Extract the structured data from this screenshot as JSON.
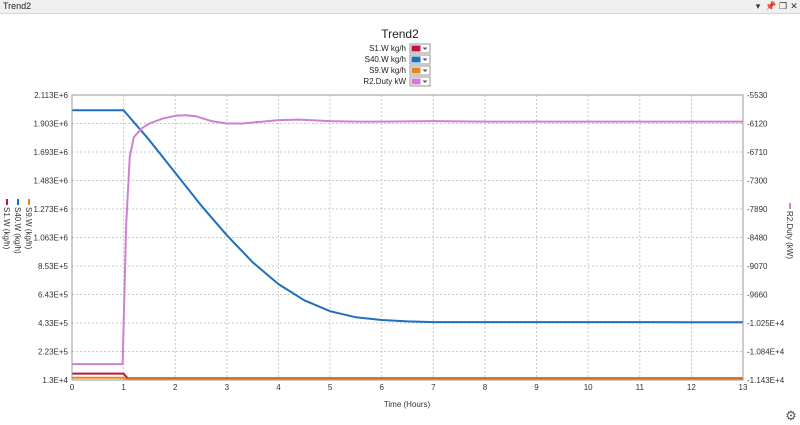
{
  "window": {
    "title": "Trend2",
    "controls": {
      "menu": "▾",
      "close": "✕",
      "restore": "❐",
      "pin": "📌"
    }
  },
  "settings_icon": "⚙",
  "chart_data": {
    "type": "line",
    "title": "Trend2",
    "xlabel": "Time (Hours)",
    "xlim": [
      0,
      13
    ],
    "x_ticks": [
      "0",
      "1",
      "2",
      "3",
      "4",
      "5",
      "6",
      "7",
      "8",
      "9",
      "10",
      "11",
      "12",
      "13"
    ],
    "left_axis": {
      "labels": [
        "S1.W (kg/h)",
        "S40.W (kg/h)",
        "S9.W (kg/h)"
      ],
      "ylim": [
        13000,
        2113000
      ],
      "ticks": [
        "1.3E+4",
        "2.23E+5",
        "4.33E+5",
        "6.43E+5",
        "8.53E+5",
        "1.063E+6",
        "1.273E+6",
        "1.483E+6",
        "1.693E+6",
        "1.903E+6",
        "2.113E+6"
      ]
    },
    "right_axis": {
      "label": "R2.Duty (kW)",
      "ylim": [
        -11430,
        -5530
      ],
      "ticks": [
        "-1.143E+4",
        "-1.084E+4",
        "-1.025E+4",
        "-9660",
        "-9070",
        "-8480",
        "-7890",
        "-7300",
        "-6710",
        "-6120",
        "-5530"
      ]
    },
    "grid": true,
    "legend_position": "top-center",
    "series": [
      {
        "name": "S1.W kg/h",
        "axis": "left",
        "color": "#c0143c",
        "x": [
          0,
          1,
          1.08,
          13
        ],
        "y": [
          60000,
          60000,
          25000,
          25000
        ]
      },
      {
        "name": "S40.W kg/h",
        "axis": "left",
        "color": "#1f6fbf",
        "x": [
          0,
          1,
          1.5,
          2,
          2.5,
          3,
          3.5,
          4,
          4.5,
          5,
          5.5,
          6,
          6.5,
          7,
          8,
          9,
          10,
          11,
          12,
          13
        ],
        "y": [
          2000000,
          2000000,
          1780000,
          1540000,
          1300000,
          1080000,
          880000,
          720000,
          600000,
          520000,
          475000,
          455000,
          445000,
          440000,
          440000,
          440000,
          440000,
          440000,
          438000,
          438000
        ]
      },
      {
        "name": "S9.W kg/h",
        "axis": "left",
        "color": "#e08a1e",
        "x": [
          0,
          1,
          1.08,
          13
        ],
        "y": [
          30000,
          30000,
          18000,
          18000
        ]
      },
      {
        "name": "R2.Duty kW",
        "axis": "right",
        "color": "#d080d0",
        "x": [
          0,
          0.98,
          1.05,
          1.12,
          1.2,
          1.35,
          1.5,
          1.75,
          2,
          2.2,
          2.4,
          2.7,
          3,
          3.3,
          3.7,
          4,
          4.4,
          5,
          5.5,
          6,
          7,
          8,
          9,
          10,
          11,
          12,
          13
        ],
        "y": [
          -11100,
          -11100,
          -8200,
          -6800,
          -6400,
          -6220,
          -6120,
          -6020,
          -5960,
          -5950,
          -5970,
          -6070,
          -6120,
          -6120,
          -6080,
          -6050,
          -6040,
          -6070,
          -6080,
          -6080,
          -6070,
          -6080,
          -6080,
          -6080,
          -6080,
          -6080,
          -6080
        ]
      }
    ]
  }
}
